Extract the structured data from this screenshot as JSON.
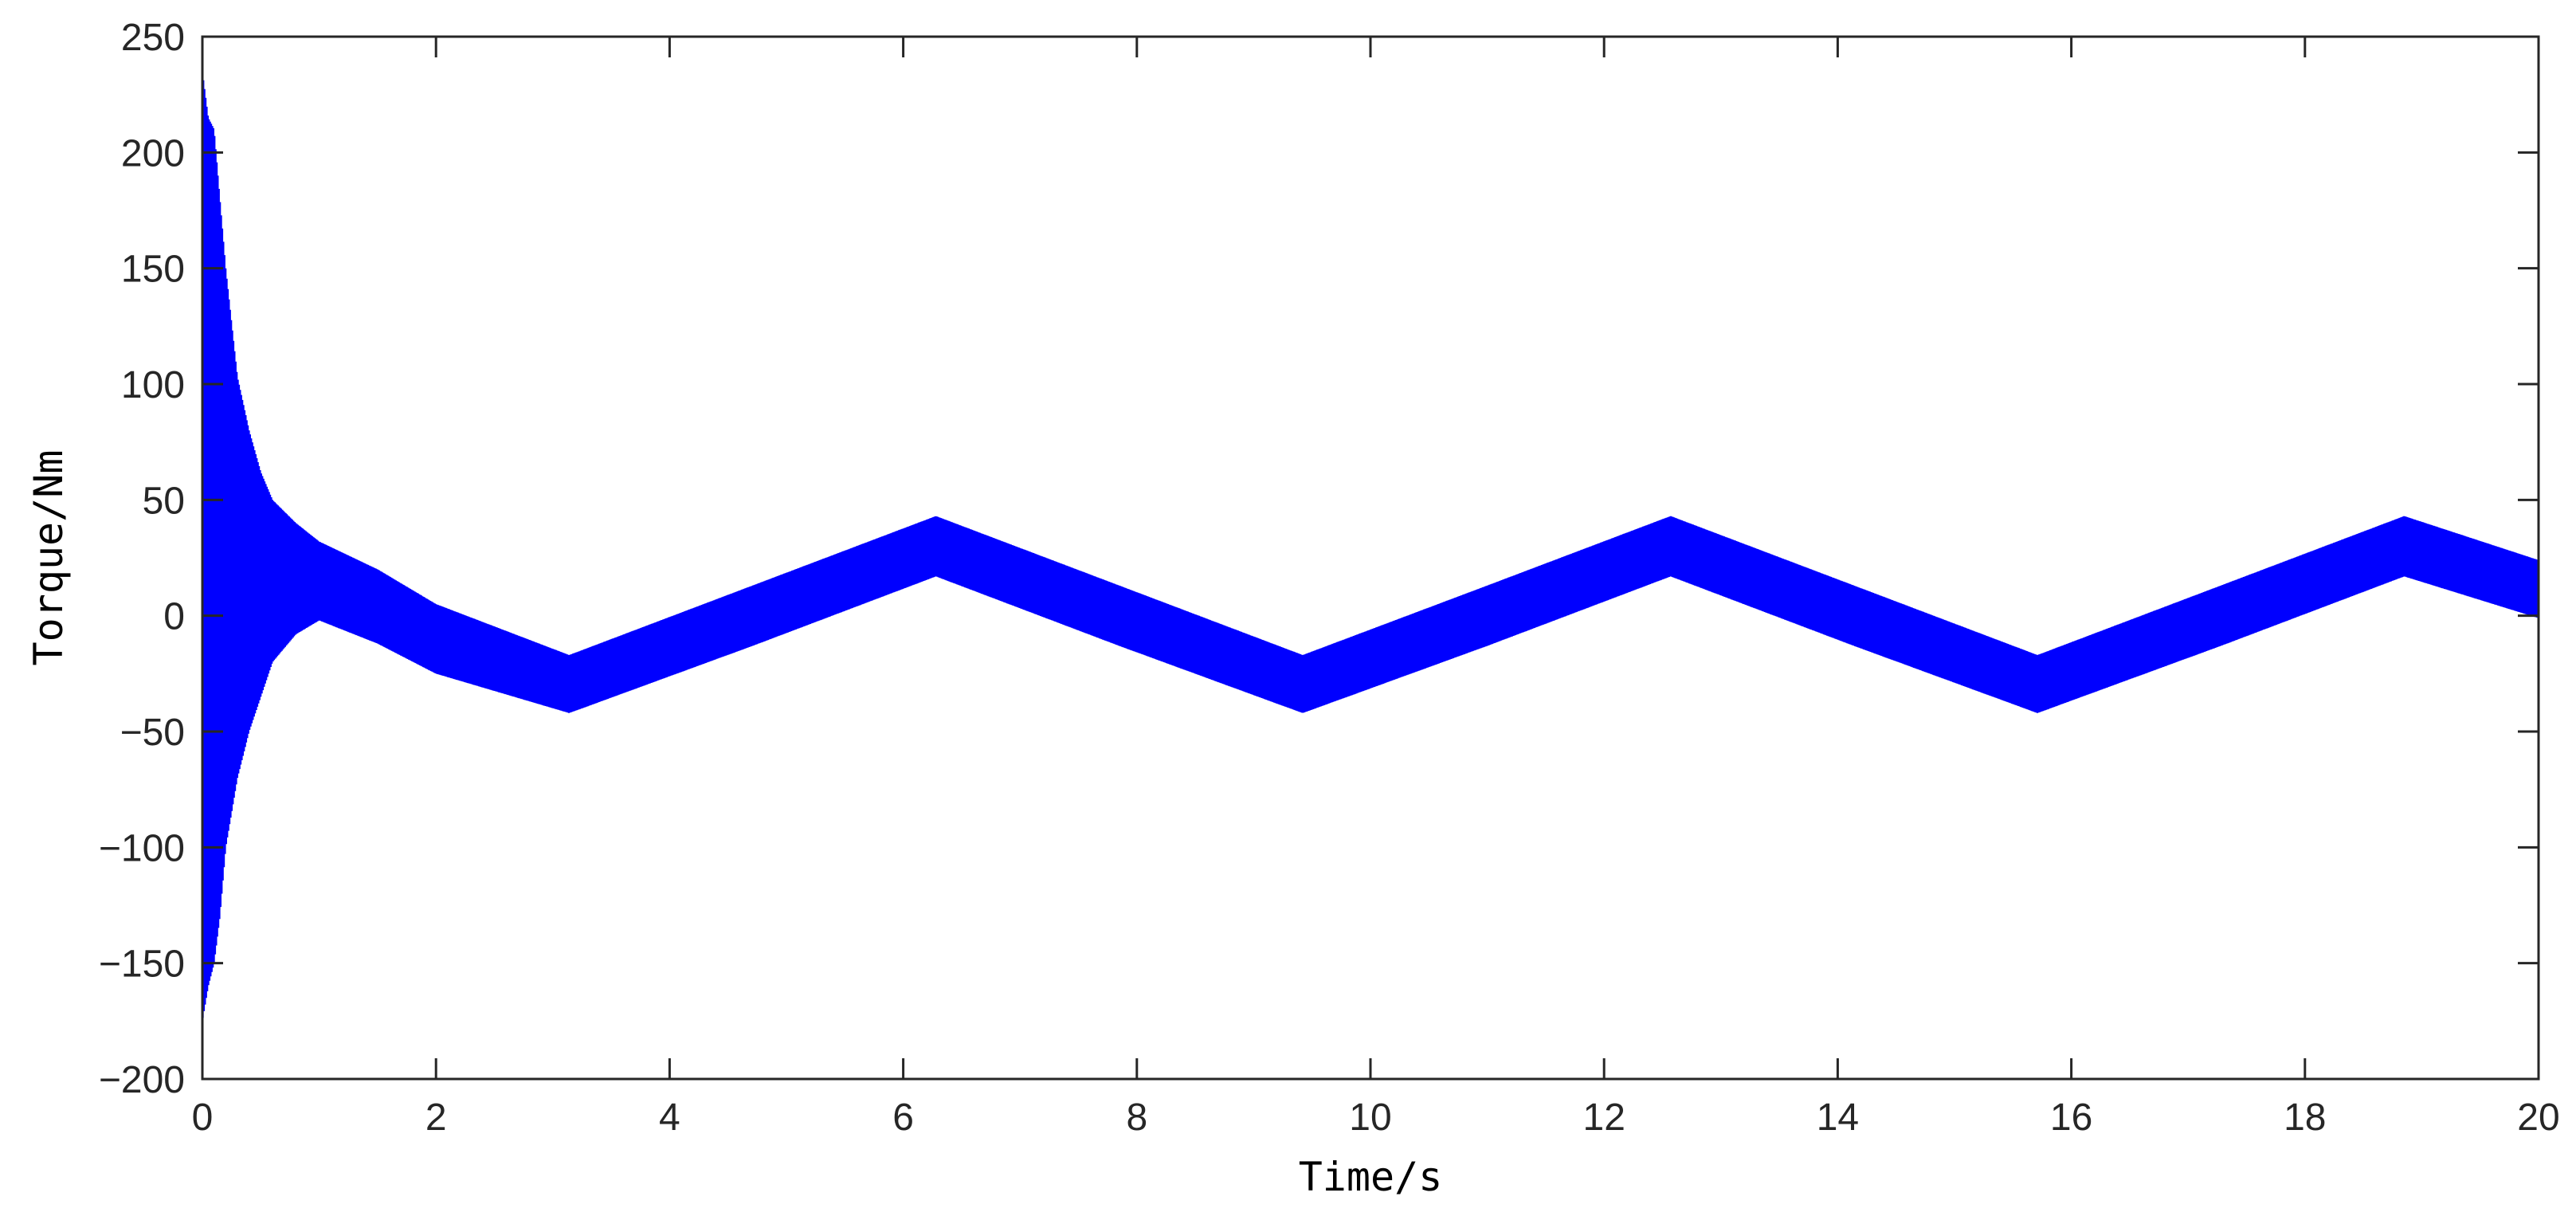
{
  "chart_data": {
    "type": "line",
    "xlabel": "Time/s",
    "ylabel": "Torque/Nm",
    "xlim": [
      0,
      20
    ],
    "ylim": [
      -200,
      250
    ],
    "xticks": [
      "0",
      "2",
      "4",
      "6",
      "8",
      "10",
      "12",
      "14",
      "16",
      "18",
      "20"
    ],
    "yticks": [
      "250",
      "200",
      "150",
      "100",
      "50",
      "0",
      "−50",
      "−100",
      "−150",
      "−200"
    ],
    "grid": false,
    "legend": "none",
    "line_color": "#0000ff",
    "series": [
      {
        "description_points": "upper and lower envelope of the high-frequency torque ripple",
        "x": [
          0,
          0.05,
          0.1,
          0.15,
          0.2,
          0.3,
          0.4,
          0.5,
          0.6,
          0.8,
          1.0,
          1.5,
          2.0,
          3.14,
          4.71,
          6.28,
          7.85,
          9.42,
          11.0,
          12.57,
          14.14,
          15.71,
          17.28,
          18.85,
          20.0
        ],
        "upper": [
          235,
          215,
          210,
          180,
          150,
          103,
          80,
          62,
          50,
          40,
          32,
          20,
          5,
          -17,
          13,
          43,
          13,
          -17,
          13,
          43,
          13,
          -17,
          13,
          43,
          24
        ],
        "lower": [
          -175,
          -160,
          -150,
          -130,
          -100,
          -70,
          -50,
          -35,
          -20,
          -8,
          -2,
          -12,
          -25,
          -42,
          -13,
          17,
          -13,
          -42,
          -13,
          17,
          -13,
          -42,
          -13,
          17,
          -1
        ]
      }
    ]
  }
}
